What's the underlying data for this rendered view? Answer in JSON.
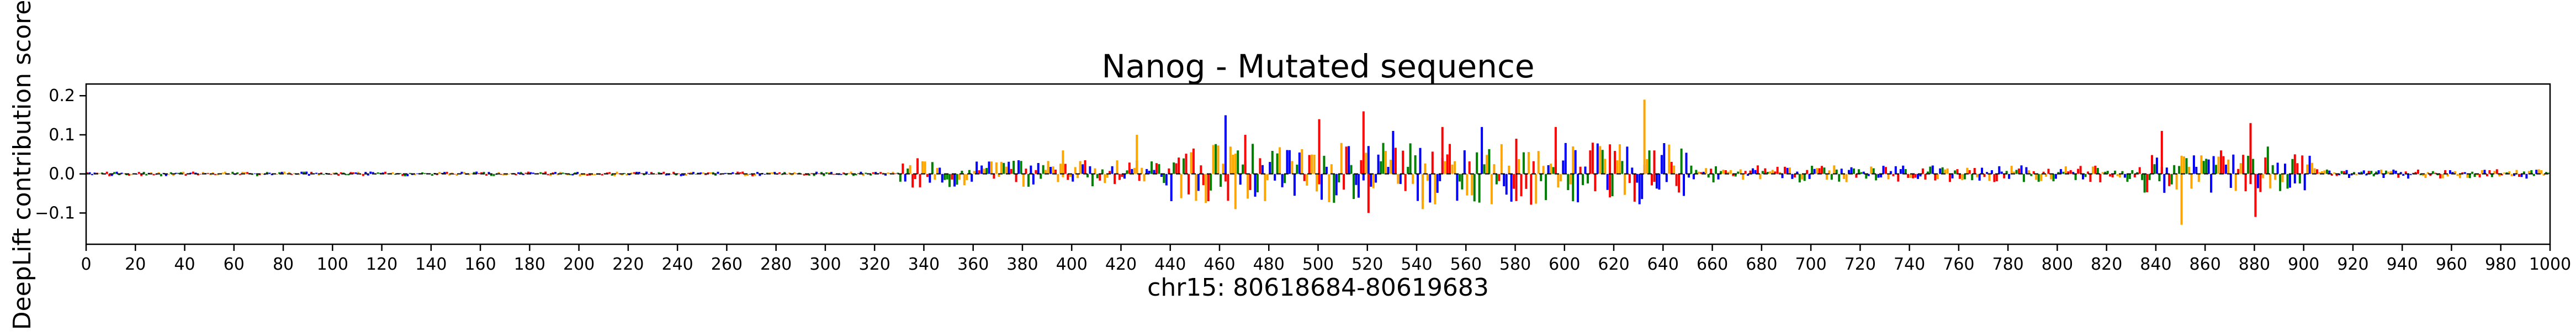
{
  "chart_data": {
    "type": "bar",
    "title": "Nanog - Mutated sequence",
    "xlabel": "chr15: 80618684-80619683",
    "ylabel": "DeepLift contribution scores",
    "xlim": [
      0,
      1000
    ],
    "ylim": [
      -0.18,
      0.23
    ],
    "yticks": [
      "0.2",
      "0.1",
      "0.0",
      "−0.1"
    ],
    "xticks": [
      "0",
      "20",
      "40",
      "60",
      "80",
      "100",
      "120",
      "140",
      "160",
      "180",
      "200",
      "220",
      "240",
      "260",
      "280",
      "300",
      "320",
      "340",
      "360",
      "380",
      "400",
      "420",
      "440",
      "460",
      "480",
      "500",
      "520",
      "540",
      "560",
      "580",
      "600",
      "620",
      "640",
      "660",
      "680",
      "700",
      "720",
      "740",
      "760",
      "780",
      "800",
      "820",
      "840",
      "860",
      "880",
      "900",
      "920",
      "940",
      "960",
      "980",
      "1000"
    ],
    "grid": false,
    "legend": "none",
    "colors": {
      "A": "#008000",
      "C": "#0000ff",
      "G": "#ffa500",
      "T": "#ff0000"
    },
    "bases": [
      "A",
      "C",
      "G",
      "T"
    ],
    "regions": [
      {
        "start": 0,
        "end": 330,
        "amp": 0.006
      },
      {
        "start": 330,
        "end": 440,
        "amp": 0.035
      },
      {
        "start": 440,
        "end": 650,
        "amp": 0.08
      },
      {
        "start": 650,
        "end": 835,
        "amp": 0.022
      },
      {
        "start": 835,
        "end": 905,
        "amp": 0.05
      },
      {
        "start": 905,
        "end": 1000,
        "amp": 0.012
      }
    ],
    "peaks": [
      {
        "x": 337,
        "value": 0.04,
        "base": "T"
      },
      {
        "x": 396,
        "value": 0.06,
        "base": "G"
      },
      {
        "x": 426,
        "value": 0.1,
        "base": "G"
      },
      {
        "x": 462,
        "value": 0.15,
        "base": "C"
      },
      {
        "x": 466,
        "value": -0.09,
        "base": "G"
      },
      {
        "x": 470,
        "value": 0.1,
        "base": "T"
      },
      {
        "x": 500,
        "value": 0.14,
        "base": "T"
      },
      {
        "x": 518,
        "value": 0.16,
        "base": "T"
      },
      {
        "x": 520,
        "value": -0.1,
        "base": "T"
      },
      {
        "x": 530,
        "value": 0.11,
        "base": "C"
      },
      {
        "x": 542,
        "value": -0.09,
        "base": "G"
      },
      {
        "x": 550,
        "value": 0.12,
        "base": "T"
      },
      {
        "x": 566,
        "value": 0.12,
        "base": "C"
      },
      {
        "x": 580,
        "value": 0.09,
        "base": "T"
      },
      {
        "x": 596,
        "value": 0.12,
        "base": "T"
      },
      {
        "x": 603,
        "value": -0.07,
        "base": "A"
      },
      {
        "x": 618,
        "value": -0.06,
        "base": "T"
      },
      {
        "x": 632,
        "value": 0.19,
        "base": "G"
      },
      {
        "x": 636,
        "value": 0.06,
        "base": "T"
      },
      {
        "x": 842,
        "value": 0.11,
        "base": "T"
      },
      {
        "x": 850,
        "value": -0.13,
        "base": "G"
      },
      {
        "x": 866,
        "value": 0.06,
        "base": "T"
      },
      {
        "x": 878,
        "value": 0.13,
        "base": "T"
      },
      {
        "x": 880,
        "value": -0.11,
        "base": "T"
      },
      {
        "x": 885,
        "value": 0.07,
        "base": "A"
      },
      {
        "x": 896,
        "value": 0.05,
        "base": "T"
      }
    ]
  }
}
